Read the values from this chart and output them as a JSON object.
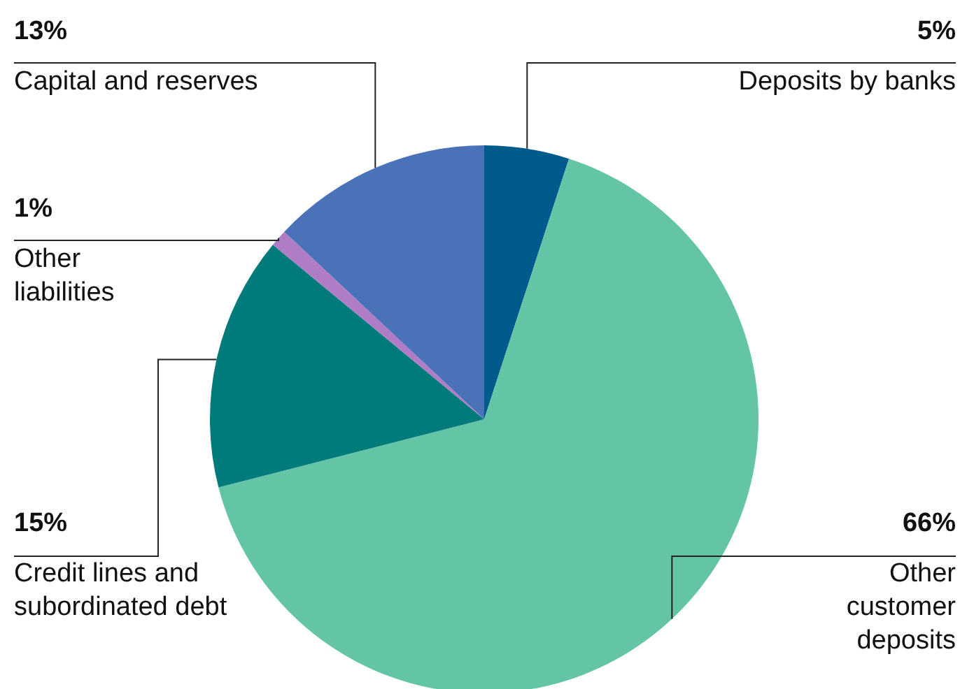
{
  "chart_data": {
    "type": "pie",
    "categories": [
      "Deposits by banks",
      "Other customer deposits",
      "Credit lines and subordinated debt",
      "Other liabilities",
      "Capital and reserves"
    ],
    "values": [
      5,
      66,
      15,
      1,
      13
    ],
    "colors": [
      "#005a8c",
      "#63c4a6",
      "#007a7a",
      "#b07cc6",
      "#4a72b8"
    ],
    "value_labels": [
      "5%",
      "66%",
      "15%",
      "1%",
      "13%"
    ],
    "legend": false
  }
}
